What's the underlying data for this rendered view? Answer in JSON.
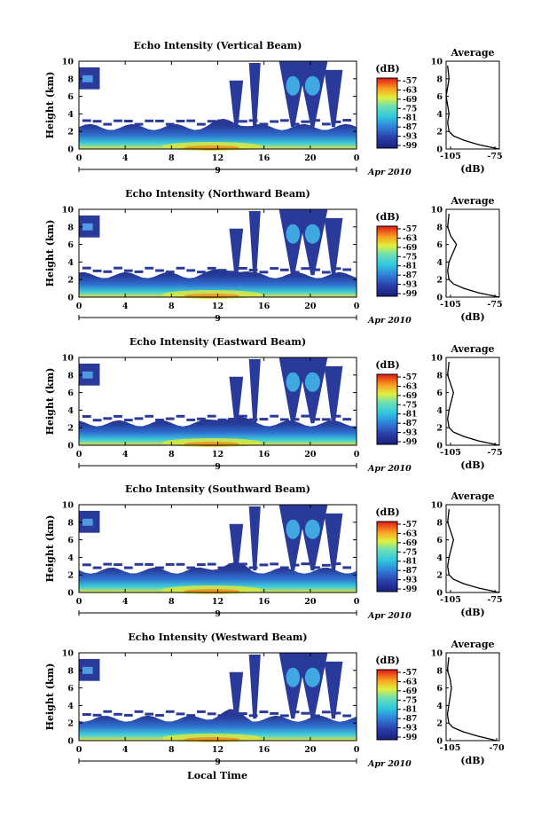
{
  "figure": {
    "xlabel": "Local Time",
    "date_day": "9",
    "date_label": "Apr 2010",
    "x_ticks": [
      "0",
      "4",
      "8",
      "12",
      "16",
      "20",
      "0"
    ],
    "x_range": [
      0,
      24
    ],
    "y_ticks": [
      "0",
      "2",
      "4",
      "6",
      "8",
      "10"
    ],
    "y_range": [
      0,
      10
    ],
    "colorbar_title": "(dB)",
    "colorbar_ticks": [
      "-57",
      "-63",
      "-69",
      "-75",
      "-81",
      "-87",
      "-93",
      "-99"
    ],
    "profile_title": "Average",
    "profile_xlabel": "(dB)",
    "colors": {
      "low": "#1f2f8f",
      "mid": "#2fb8d8",
      "high": "#f0e020",
      "peak": "#e02010"
    }
  },
  "chart_data": [
    {
      "type": "heatmap",
      "title": "Echo Intensity (Vertical Beam)",
      "ylabel": "Height (km)",
      "profile": {
        "type": "line",
        "xticks": [
          "-105",
          "-75"
        ],
        "xlim": [
          -108,
          -72
        ],
        "x": [
          -72,
          -86,
          -96,
          -103,
          -106,
          -107,
          -106,
          -107,
          -108,
          -106,
          -107
        ],
        "y": [
          0,
          0.5,
          1,
          1.5,
          2,
          3,
          4,
          5,
          6,
          8,
          9.5
        ]
      }
    },
    {
      "type": "heatmap",
      "title": "Echo Intensity (Northward Beam)",
      "ylabel": "Height (km)",
      "profile": {
        "type": "line",
        "xticks": [
          "-105",
          "-75"
        ],
        "xlim": [
          -108,
          -72
        ],
        "x": [
          -72,
          -86,
          -96,
          -103,
          -106,
          -107,
          -106,
          -101,
          -105,
          -107,
          -106
        ],
        "y": [
          0,
          0.5,
          1,
          1.5,
          2,
          3,
          4,
          6,
          7,
          8,
          9.5
        ]
      }
    },
    {
      "type": "heatmap",
      "title": "Echo Intensity (Eastward Beam)",
      "ylabel": "Height (km)",
      "profile": {
        "type": "line",
        "xticks": [
          "-105",
          "-75"
        ],
        "xlim": [
          -108,
          -72
        ],
        "x": [
          -72,
          -86,
          -96,
          -103,
          -106,
          -107,
          -106,
          -103,
          -105,
          -107,
          -106
        ],
        "y": [
          0,
          0.5,
          1,
          1.5,
          2,
          3,
          4,
          6,
          7,
          8,
          9.5
        ]
      }
    },
    {
      "type": "heatmap",
      "title": "Echo Intensity (Southward Beam)",
      "ylabel": "Height (km)",
      "profile": {
        "type": "line",
        "xticks": [
          "-105",
          "-75"
        ],
        "xlim": [
          -108,
          -72
        ],
        "x": [
          -72,
          -86,
          -96,
          -103,
          -106,
          -107,
          -106,
          -103,
          -105,
          -107,
          -106
        ],
        "y": [
          0,
          0.5,
          1,
          1.5,
          2,
          3,
          4,
          6,
          7,
          8,
          9.5
        ]
      }
    },
    {
      "type": "heatmap",
      "title": "Echo Intensity (Westward Beam)",
      "ylabel": "Height (km)",
      "profile": {
        "type": "line",
        "xticks": [
          "-105",
          "-70"
        ],
        "xlim": [
          -108,
          -68
        ],
        "x": [
          -70,
          -84,
          -95,
          -103,
          -106,
          -107,
          -106,
          -104,
          -105,
          -107,
          -106
        ],
        "y": [
          0,
          0.5,
          1,
          1.5,
          2,
          3,
          4,
          6,
          7,
          8,
          9.5
        ]
      }
    }
  ]
}
